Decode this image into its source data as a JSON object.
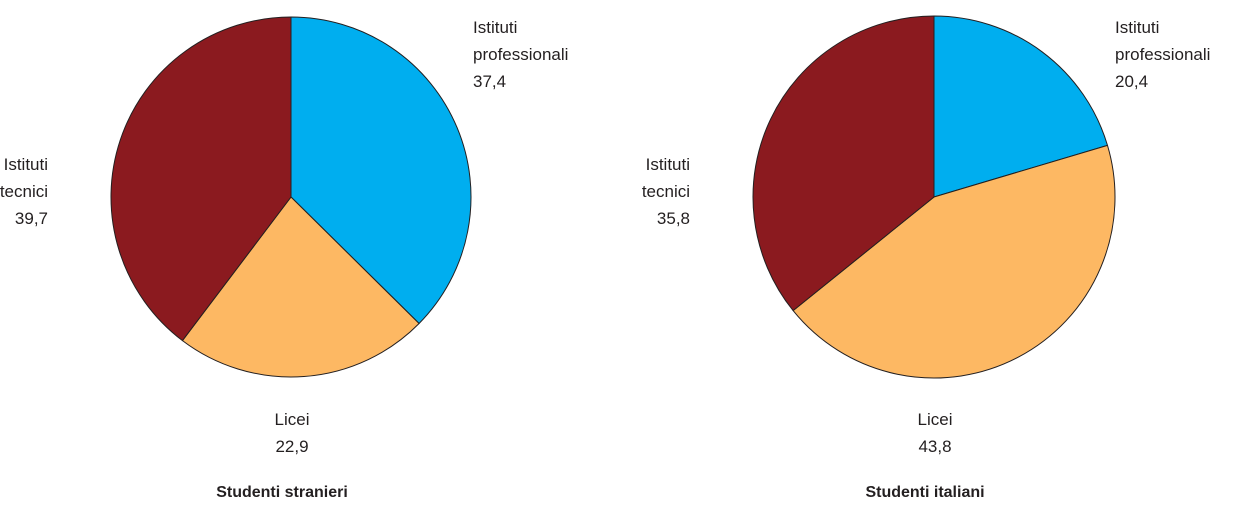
{
  "colors": {
    "Istituti professionali": "#00aeef",
    "Licei": "#fdb863",
    "Istituti tecnici": "#8b1a1f",
    "stroke": "#231f20"
  },
  "chart_data": [
    {
      "type": "pie",
      "title": "Studenti stranieri",
      "slices": [
        {
          "label": [
            "Istituti",
            "professionali"
          ],
          "value_text": "37,4",
          "value": 37.4
        },
        {
          "label": [
            "Licei"
          ],
          "value_text": "22,9",
          "value": 22.9
        },
        {
          "label": [
            "Istituti",
            "tecnici"
          ],
          "value_text": "39,7",
          "value": 39.7
        }
      ]
    },
    {
      "type": "pie",
      "title": "Studenti italiani",
      "slices": [
        {
          "label": [
            "Istituti",
            "professionali"
          ],
          "value_text": "20,4",
          "value": 20.4
        },
        {
          "label": [
            "Licei"
          ],
          "value_text": "43,8",
          "value": 43.8
        },
        {
          "label": [
            "Istituti",
            "tecnici"
          ],
          "value_text": "35,8",
          "value": 35.8
        }
      ]
    }
  ]
}
